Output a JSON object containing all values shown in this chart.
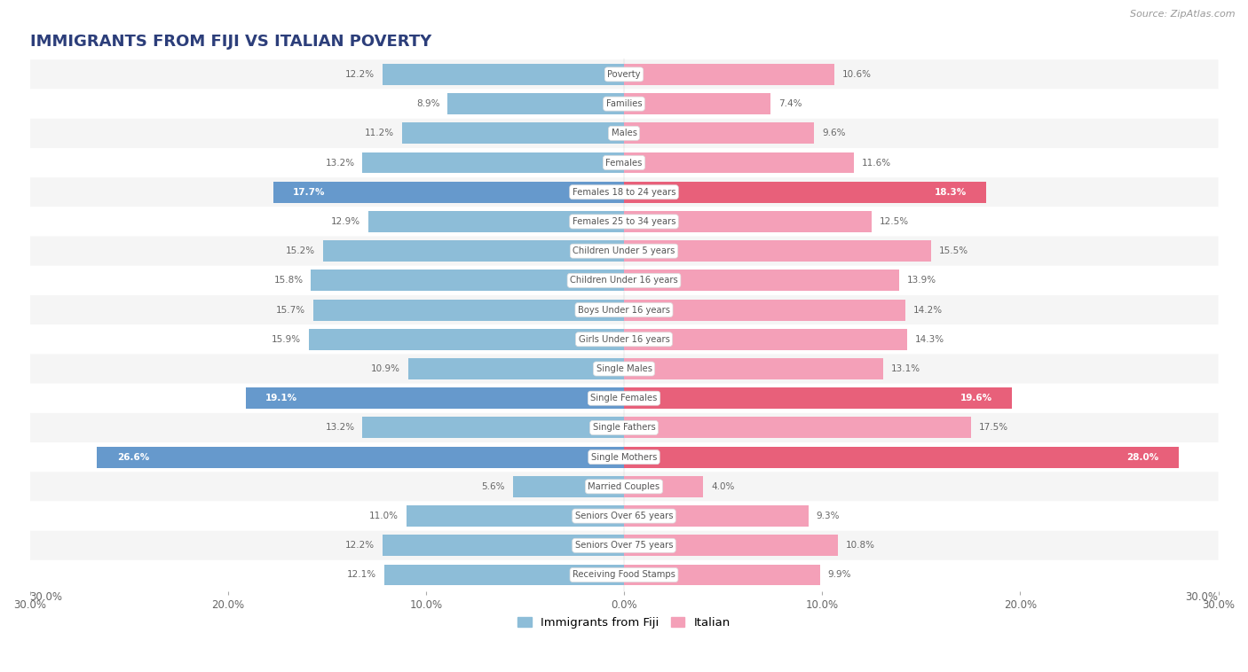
{
  "title": "IMMIGRANTS FROM FIJI VS ITALIAN POVERTY",
  "source": "Source: ZipAtlas.com",
  "categories": [
    "Poverty",
    "Families",
    "Males",
    "Females",
    "Females 18 to 24 years",
    "Females 25 to 34 years",
    "Children Under 5 years",
    "Children Under 16 years",
    "Boys Under 16 years",
    "Girls Under 16 years",
    "Single Males",
    "Single Females",
    "Single Fathers",
    "Single Mothers",
    "Married Couples",
    "Seniors Over 65 years",
    "Seniors Over 75 years",
    "Receiving Food Stamps"
  ],
  "fiji_values": [
    12.2,
    8.9,
    11.2,
    13.2,
    17.7,
    12.9,
    15.2,
    15.8,
    15.7,
    15.9,
    10.9,
    19.1,
    13.2,
    26.6,
    5.6,
    11.0,
    12.2,
    12.1
  ],
  "italian_values": [
    10.6,
    7.4,
    9.6,
    11.6,
    18.3,
    12.5,
    15.5,
    13.9,
    14.2,
    14.3,
    13.1,
    19.6,
    17.5,
    28.0,
    4.0,
    9.3,
    10.8,
    9.9
  ],
  "fiji_color": "#8dbdd8",
  "italian_color": "#f4a0b8",
  "fiji_highlight_color": "#6699cc",
  "italian_highlight_color": "#e8607a",
  "highlight_rows": [
    4,
    11,
    13
  ],
  "background_color": "#ffffff",
  "row_bg_even": "#f5f5f5",
  "row_bg_odd": "#ffffff",
  "xlim": 30.0,
  "legend_fiji": "Immigrants from Fiji",
  "legend_italian": "Italian",
  "title_color": "#2c3e7a",
  "label_color": "#666666",
  "value_color_normal": "#666666",
  "value_color_highlight": "#ffffff"
}
